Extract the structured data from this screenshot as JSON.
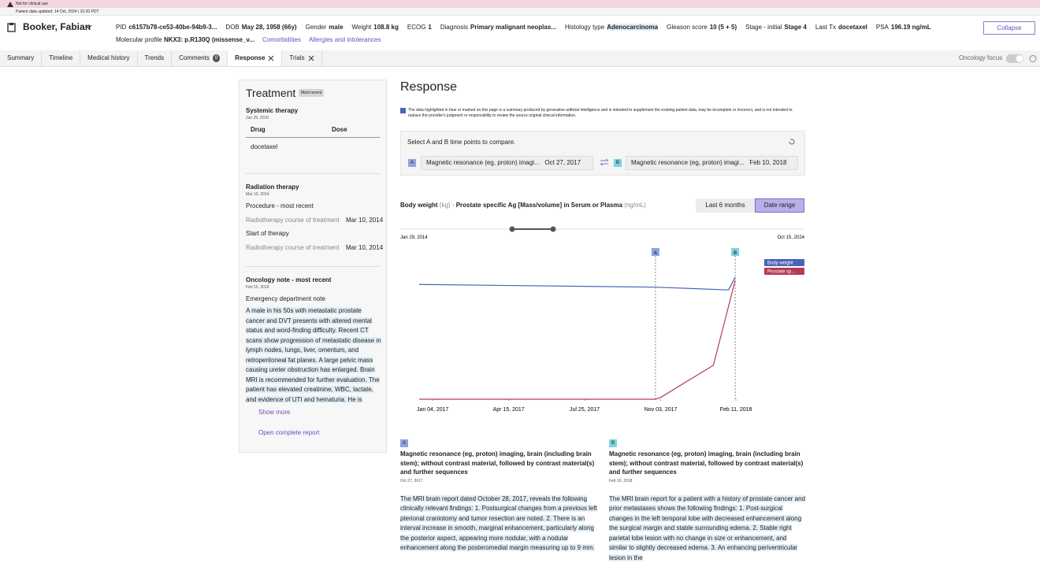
{
  "banner": {
    "warning": "Not for clinical use",
    "updated": "Patient data updated: 14 Oct, 2024 | 10:20 PDT"
  },
  "patient": {
    "name": "Booker, Fabian",
    "fields": [
      {
        "label": "PID",
        "value": "c6157b78-ce53-40be-94b9-3..."
      },
      {
        "label": "DOB",
        "value": "May 28, 1958 (66y)"
      },
      {
        "label": "Gender",
        "value": "male"
      },
      {
        "label": "Weight",
        "value": "108.8 kg"
      },
      {
        "label": "ECOG",
        "value": "1"
      },
      {
        "label": "Diagnosis",
        "value": "Primary malignant neoplas..."
      },
      {
        "label": "Histology type",
        "value": "Adenocarcinoma"
      },
      {
        "label": "Gleason score",
        "value": "10 (5 + 5)"
      },
      {
        "label": "Stage - initial",
        "value": "Stage 4"
      },
      {
        "label": "Last Tx",
        "value": "docetaxel"
      },
      {
        "label": "PSA",
        "value": "196.19 ng/mL"
      }
    ],
    "molecular_label": "Molecular profile",
    "molecular_value": "NKX3: p.R130Q (missense_v...",
    "links": [
      "Comorbidities",
      "Allergies and intolerances"
    ],
    "collapse": "Collapse"
  },
  "tabs": [
    "Summary",
    "Timeline",
    "Medical history",
    "Trends",
    "Comments",
    "Response",
    "Trials"
  ],
  "comments_count": 0,
  "oncology_focus": "Oncology focus",
  "treatment": {
    "title": "Treatment",
    "badge": "Most recent",
    "systemic": {
      "title": "Systemic therapy",
      "date": "Jan 29, 2018",
      "headers": [
        "Drug",
        "Dose"
      ],
      "drug": "docetaxel"
    },
    "radiation": {
      "title": "Radiation therapy",
      "date": "Mar 10, 2014",
      "items": [
        {
          "label": "Procedure - most recent",
          "name": "Radiotherapy course of treatment",
          "date": "Mar 10, 2014"
        },
        {
          "label": "Start of therapy",
          "name": "Radiotherapy course of treatment",
          "date": "Mar 10, 2014"
        }
      ]
    },
    "note": {
      "title": "Oncology note - most recent",
      "date": "Feb 10, 2018",
      "type": "Emergency department note",
      "text": "A male in his 50s with metastatic prostate cancer and DVT presents with altered mental status and word-finding difficulty. Recent CT scans show progression of metastatic disease in lymph nodes, lungs, liver, omentum, and retroperitoneal fat planes. A large pelvic mass causing ureter obstruction has enlarged. Brain MRI is recommended for further evaluation. The patient has elevated creatinine, WBC, lactate, and evidence of UTI and hematuria. He is",
      "more": "Show more",
      "open": "Open complete report"
    }
  },
  "response": {
    "title": "Response",
    "disclaimer": "The data highlighted in blue or marked on this page is a summary produced by generative artificial intelligence and is intended to supplement the existing patient data, may be incomplete or incorrect, and is not intended to replace the provider's judgment or responsibility to review the source original clinical information.",
    "compare": {
      "prompt": "Select A and B time points to compare.",
      "a": {
        "letter": "A",
        "name": "Magnetic resonance (eg, proton) imagi...",
        "date": "Oct 27, 2017"
      },
      "b": {
        "letter": "B",
        "name": "Magnetic resonance (eg, proton) imagi...",
        "date": "Feb 10, 2018"
      }
    },
    "buttons": [
      "Last 6 months",
      "Date range"
    ],
    "range_start": "Jan 29, 2014",
    "range_end": "Oct 15, 2024",
    "reports": [
      {
        "letter": "A",
        "title": "Magnetic resonance (eg, proton) imaging, brain (including brain stem); without contrast material, followed by contrast material(s) and further sequences",
        "date": "Oct 27, 2017",
        "text": "The MRI brain report dated October 28, 2017, reveals the following clinically relevant findings: 1. Postsurgical changes from a previous left pterional craniotomy and tumor resection are noted. 2. There is an interval increase in smooth, marginal enhancement, particularly along the posterior aspect, appearing more nodular, with a nodular enhancement along the posteromedial margin measuring up to 9 mm."
      },
      {
        "letter": "B",
        "title": "Magnetic resonance (eg, proton) imaging, brain (including brain stem); without contrast material, followed by contrast material(s) and further sequences",
        "date": "Feb 10, 2018",
        "text": "The MRI brain report for a patient with a history of prostate cancer and prior metastases shows the following findings: 1. Post-surgical changes in the left temporal lobe with decreased enhancement along the surgical margin and stable surrounding edema. 2. Stable right parietal lobe lesion with no change in size or enhancement, and similar to slightly decreased edema. 3. An enhancing periventricular lesion in the"
      }
    ],
    "chart_data": {
      "type": "line",
      "title_separator": "·",
      "xlim": [
        "2016-12-17",
        "2018-05-13"
      ],
      "xticks": [
        {
          "value": "2017-01-04",
          "label": "Jan 04, 2017"
        },
        {
          "value": "2017-04-15",
          "label": "Apr 15, 2017"
        },
        {
          "value": "2017-07-25",
          "label": "Jul 25, 2017"
        },
        {
          "value": "2017-11-03",
          "label": "Nov 03, 2017"
        },
        {
          "value": "2018-02-11",
          "label": "Feb 11, 2018"
        }
      ],
      "markers": [
        {
          "label": "A",
          "x": "2017-10-27"
        },
        {
          "label": "B",
          "x": "2018-02-10"
        }
      ],
      "series": [
        {
          "name": "Body weight",
          "unit": "(kg)",
          "legend_label": "Body weight",
          "color": "#4a63b8",
          "x": [
            "2016-12-17",
            "2017-10-27",
            "2018-02-01",
            "2018-02-10"
          ],
          "values": [
            110.5,
            110,
            109.5,
            111.8
          ],
          "ylim": [
            89.5,
            115
          ]
        },
        {
          "name": "Prostate specific Ag [Mass/volume] in Serum or Plasma",
          "unit": "(ng/mL)",
          "legend_label": "Prostate sp...",
          "color": "#b53a57",
          "x": [
            "2016-12-17",
            "2017-10-27",
            "2017-11-03",
            "2018-01-12",
            "2018-02-10"
          ],
          "values": [
            0,
            0,
            3,
            56,
            196.19
          ],
          "ylim": [
            0,
            230
          ]
        }
      ]
    }
  }
}
